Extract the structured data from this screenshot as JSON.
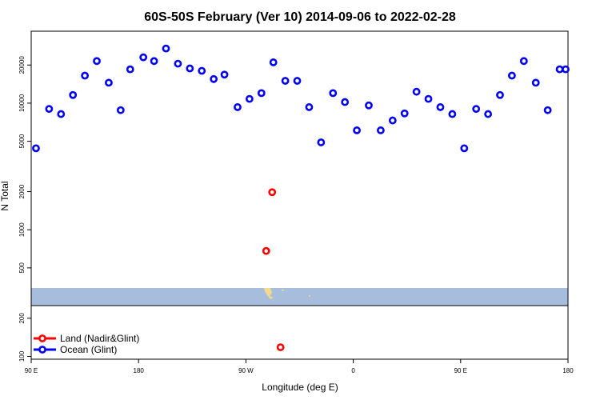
{
  "chart_data": {
    "type": "scatter",
    "title": "60S-50S February (Ver 10)   2014-09-06 to 2022-02-28",
    "xlabel": "Longitude (deg E)",
    "ylabel": "N Total",
    "x_ticks": [
      {
        "value": 90,
        "label": "90 E"
      },
      {
        "value": 180,
        "label": "180"
      },
      {
        "value": 270,
        "label": "90 W"
      },
      {
        "value": 360,
        "label": "0"
      },
      {
        "value": 450,
        "label": "90 E"
      },
      {
        "value": 540,
        "label": "180"
      }
    ],
    "y_ticks": [
      100,
      200,
      500,
      1000,
      2000,
      5000,
      10000,
      20000
    ],
    "y_scale": "log",
    "xlim": [
      90,
      540
    ],
    "ylim": [
      95,
      37000
    ],
    "legend_position": "bottom-left",
    "series": [
      {
        "name": "Land (Nadir&Glint)",
        "color": "#ff0000",
        "x": [
          292,
          287,
          299
        ],
        "y": [
          1980,
          680,
          118
        ]
      },
      {
        "name": "Ocean (Glint)",
        "color": "#0000ff",
        "x": [
          94,
          105,
          115,
          125,
          135,
          145,
          155,
          165,
          173,
          184,
          193,
          203,
          213,
          223,
          233,
          243,
          252,
          263,
          273,
          283,
          293,
          303,
          313,
          323,
          333,
          343,
          353,
          363,
          373,
          383,
          393,
          403,
          413,
          423,
          433,
          443,
          453,
          463,
          473,
          483,
          493,
          503,
          513,
          523,
          533,
          538
        ],
        "y": [
          4400,
          9000,
          8200,
          11600,
          16500,
          21500,
          14500,
          8800,
          18500,
          23000,
          21500,
          27000,
          20500,
          18800,
          18000,
          15500,
          16800,
          9300,
          10800,
          12000,
          21000,
          15000,
          15000,
          9300,
          4900,
          12000,
          10200,
          6100,
          9600,
          6100,
          7300,
          8300,
          12300,
          10800,
          9300,
          8200,
          4400,
          9000,
          8200,
          11600,
          16500,
          21500,
          14500,
          8800,
          18500,
          18500
        ]
      }
    ]
  },
  "map_band": {
    "ocean_color": "#a6bddb",
    "land_color": "#f3d98a"
  }
}
